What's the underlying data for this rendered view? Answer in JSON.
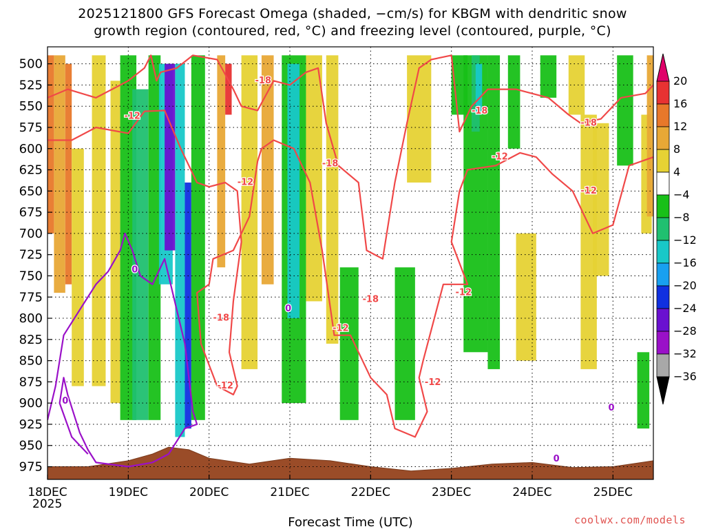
{
  "header": {
    "title_line1": "2025121800 GFS Forecast Omega (shaded, −cm/s) for KBGM with dendritic snow",
    "title_line2": "growth region (contoured, red, °C) and freezing level (contoured, purple, °C)"
  },
  "footer": {
    "credit": "coolwx.com/models"
  },
  "chart_data": {
    "type": "heatmap",
    "title": "2025121800 GFS Forecast Omega (shaded, −cm/s) for KBGM with dendritic snow growth region (contoured, red, °C) and freezing level (contoured, purple, °C)",
    "xlabel": "Forecast Time (UTC)",
    "ylabel": "",
    "x_range_days": [
      0,
      7.5
    ],
    "x_ticks": [
      {
        "day": 0,
        "label": "18DEC",
        "sublabel": "2025"
      },
      {
        "day": 1,
        "label": "19DEC"
      },
      {
        "day": 2,
        "label": "20DEC"
      },
      {
        "day": 3,
        "label": "21DEC"
      },
      {
        "day": 4,
        "label": "22DEC"
      },
      {
        "day": 5,
        "label": "23DEC"
      },
      {
        "day": 6,
        "label": "24DEC"
      },
      {
        "day": 7,
        "label": "25DEC"
      }
    ],
    "y_range_hpa": [
      480,
      990
    ],
    "y_ticks": [
      500,
      525,
      550,
      575,
      600,
      625,
      650,
      675,
      700,
      725,
      750,
      775,
      800,
      825,
      850,
      875,
      900,
      925,
      950,
      975
    ],
    "grid": "dotted",
    "colorbar": {
      "labels": [
        "20",
        "16",
        "12",
        "8",
        "4",
        "−4",
        "−8",
        "−12",
        "−16",
        "−20",
        "−24",
        "−28",
        "−32",
        "−36"
      ],
      "colors": [
        "#e0006a",
        "#e83232",
        "#e8782a",
        "#e8a836",
        "#e6d234",
        "#ffffff",
        "#18c018",
        "#20c070",
        "#18c8c8",
        "#18a0f0",
        "#1030e0",
        "#6a10d0",
        "#9a10c8",
        "#a8a8a8",
        "#000000"
      ]
    },
    "omega_shading": [
      {
        "d0": 0.0,
        "d1": 0.08,
        "p0": 490,
        "p1": 700,
        "v": 12
      },
      {
        "d0": 0.08,
        "d1": 0.22,
        "p0": 490,
        "p1": 770,
        "v": 8
      },
      {
        "d0": 0.22,
        "d1": 0.3,
        "p0": 500,
        "p1": 760,
        "v": 12
      },
      {
        "d0": 0.3,
        "d1": 0.45,
        "p0": 600,
        "p1": 880,
        "v": 4
      },
      {
        "d0": 0.55,
        "d1": 0.72,
        "p0": 490,
        "p1": 880,
        "v": 4
      },
      {
        "d0": 0.78,
        "d1": 0.9,
        "p0": 520,
        "p1": 900,
        "v": 4
      },
      {
        "d0": 0.9,
        "d1": 1.1,
        "p0": 490,
        "p1": 920,
        "v": -8
      },
      {
        "d0": 1.05,
        "d1": 1.25,
        "p0": 530,
        "p1": 920,
        "v": -12
      },
      {
        "d0": 1.25,
        "d1": 1.4,
        "p0": 490,
        "p1": 920,
        "v": -8
      },
      {
        "d0": 1.38,
        "d1": 1.55,
        "p0": 500,
        "p1": 760,
        "v": -16
      },
      {
        "d0": 1.45,
        "d1": 1.58,
        "p0": 500,
        "p1": 720,
        "v": -28
      },
      {
        "d0": 1.58,
        "d1": 1.7,
        "p0": 500,
        "p1": 940,
        "v": -16
      },
      {
        "d0": 1.7,
        "d1": 1.78,
        "p0": 640,
        "p1": 930,
        "v": -24
      },
      {
        "d0": 1.78,
        "d1": 1.95,
        "p0": 490,
        "p1": 920,
        "v": -8
      },
      {
        "d0": 2.1,
        "d1": 2.2,
        "p0": 490,
        "p1": 740,
        "v": 8
      },
      {
        "d0": 2.2,
        "d1": 2.28,
        "p0": 500,
        "p1": 560,
        "v": 16
      },
      {
        "d0": 2.4,
        "d1": 2.6,
        "p0": 490,
        "p1": 860,
        "v": 4
      },
      {
        "d0": 2.65,
        "d1": 2.8,
        "p0": 490,
        "p1": 760,
        "v": 8
      },
      {
        "d0": 2.9,
        "d1": 3.2,
        "p0": 490,
        "p1": 900,
        "v": -8
      },
      {
        "d0": 2.97,
        "d1": 3.12,
        "p0": 500,
        "p1": 800,
        "v": -16
      },
      {
        "d0": 3.2,
        "d1": 3.4,
        "p0": 490,
        "p1": 780,
        "v": 4
      },
      {
        "d0": 3.45,
        "d1": 3.6,
        "p0": 490,
        "p1": 830,
        "v": 4
      },
      {
        "d0": 3.62,
        "d1": 3.85,
        "p0": 740,
        "p1": 920,
        "v": -8
      },
      {
        "d0": 4.3,
        "d1": 4.55,
        "p0": 740,
        "p1": 920,
        "v": -8
      },
      {
        "d0": 4.45,
        "d1": 4.75,
        "p0": 490,
        "p1": 640,
        "v": 4
      },
      {
        "d0": 5.0,
        "d1": 5.2,
        "p0": 490,
        "p1": 560,
        "v": -8
      },
      {
        "d0": 5.15,
        "d1": 5.45,
        "p0": 490,
        "p1": 840,
        "v": -8
      },
      {
        "d0": 5.25,
        "d1": 5.35,
        "p0": 490,
        "p1": 580,
        "v": -12
      },
      {
        "d0": 5.3,
        "d1": 5.38,
        "p0": 500,
        "p1": 560,
        "v": -16
      },
      {
        "d0": 5.45,
        "d1": 5.6,
        "p0": 490,
        "p1": 860,
        "v": -8
      },
      {
        "d0": 5.7,
        "d1": 5.85,
        "p0": 490,
        "p1": 600,
        "v": -8
      },
      {
        "d0": 5.8,
        "d1": 6.05,
        "p0": 700,
        "p1": 850,
        "v": 4
      },
      {
        "d0": 6.1,
        "d1": 6.3,
        "p0": 490,
        "p1": 540,
        "v": -8
      },
      {
        "d0": 6.45,
        "d1": 6.65,
        "p0": 490,
        "p1": 560,
        "v": 4
      },
      {
        "d0": 6.6,
        "d1": 6.8,
        "p0": 560,
        "p1": 860,
        "v": 4
      },
      {
        "d0": 6.75,
        "d1": 6.95,
        "p0": 570,
        "p1": 750,
        "v": 4
      },
      {
        "d0": 7.05,
        "d1": 7.25,
        "p0": 490,
        "p1": 620,
        "v": -8
      },
      {
        "d0": 7.35,
        "d1": 7.48,
        "p0": 560,
        "p1": 700,
        "v": 4
      },
      {
        "d0": 7.42,
        "d1": 7.5,
        "p0": 490,
        "p1": 680,
        "v": 8
      },
      {
        "d0": 7.3,
        "d1": 7.45,
        "p0": 840,
        "p1": 930,
        "v": -8
      }
    ],
    "series": [
      {
        "name": "-12 °C isotherm",
        "color": "#f04848",
        "points": [
          [
            0.0,
            590
          ],
          [
            0.3,
            590
          ],
          [
            0.6,
            575
          ],
          [
            1.0,
            582
          ],
          [
            1.2,
            556
          ],
          [
            1.45,
            555
          ],
          [
            1.65,
            600
          ],
          [
            1.85,
            640
          ],
          [
            2.0,
            645
          ],
          [
            2.2,
            640
          ],
          [
            2.35,
            650
          ],
          [
            2.4,
            710
          ],
          [
            2.3,
            780
          ],
          [
            2.25,
            840
          ],
          [
            2.35,
            880
          ],
          [
            2.3,
            890
          ],
          [
            2.1,
            880
          ],
          [
            1.9,
            830
          ],
          [
            1.85,
            770
          ],
          [
            2.0,
            760
          ],
          [
            2.05,
            730
          ],
          [
            2.3,
            720
          ],
          [
            2.5,
            680
          ],
          [
            2.6,
            615
          ],
          [
            2.65,
            600
          ],
          [
            2.8,
            590
          ],
          [
            3.05,
            600
          ],
          [
            3.25,
            640
          ],
          [
            3.4,
            720
          ],
          [
            3.55,
            820
          ],
          [
            3.75,
            820
          ],
          [
            4.0,
            870
          ],
          [
            4.2,
            890
          ],
          [
            4.3,
            930
          ],
          [
            4.55,
            940
          ],
          [
            4.7,
            910
          ],
          [
            4.6,
            870
          ],
          [
            4.65,
            850
          ],
          [
            4.9,
            760
          ],
          [
            5.2,
            760
          ],
          [
            5.0,
            710
          ],
          [
            5.1,
            650
          ],
          [
            5.2,
            625
          ],
          [
            5.55,
            620
          ],
          [
            5.85,
            605
          ],
          [
            6.05,
            610
          ],
          [
            6.25,
            630
          ],
          [
            6.5,
            650
          ],
          [
            6.75,
            700
          ],
          [
            7.0,
            690
          ],
          [
            7.2,
            620
          ],
          [
            7.5,
            610
          ]
        ]
      },
      {
        "name": "-18 °C isotherm",
        "color": "#f04848",
        "points": [
          [
            0.0,
            540
          ],
          [
            0.25,
            530
          ],
          [
            0.6,
            540
          ],
          [
            1.0,
            520
          ],
          [
            1.2,
            505
          ],
          [
            1.28,
            490
          ],
          [
            1.35,
            520
          ],
          [
            1.4,
            510
          ],
          [
            1.6,
            505
          ],
          [
            1.8,
            490
          ],
          [
            2.1,
            495
          ],
          [
            2.3,
            530
          ],
          [
            2.4,
            550
          ],
          [
            2.6,
            555
          ],
          [
            2.8,
            520
          ],
          [
            3.0,
            525
          ],
          [
            3.2,
            510
          ],
          [
            3.35,
            505
          ],
          [
            3.45,
            570
          ],
          [
            3.6,
            620
          ],
          [
            3.85,
            640
          ],
          [
            3.95,
            720
          ],
          [
            4.15,
            730
          ],
          [
            4.3,
            640
          ],
          [
            4.45,
            570
          ],
          [
            4.6,
            505
          ],
          [
            4.75,
            495
          ],
          [
            5.0,
            490
          ],
          [
            5.1,
            580
          ],
          [
            5.25,
            550
          ],
          [
            5.45,
            530
          ],
          [
            5.8,
            530
          ],
          [
            6.2,
            540
          ],
          [
            6.45,
            560
          ],
          [
            6.6,
            570
          ],
          [
            6.85,
            565
          ],
          [
            7.1,
            540
          ],
          [
            7.4,
            535
          ],
          [
            7.5,
            525
          ]
        ]
      },
      {
        "name": "0 °C freezing level",
        "color": "#9a10c8",
        "points": [
          [
            0.0,
            920
          ],
          [
            0.1,
            880
          ],
          [
            0.2,
            820
          ],
          [
            0.4,
            790
          ],
          [
            0.6,
            760
          ],
          [
            0.75,
            745
          ],
          [
            0.9,
            720
          ],
          [
            0.96,
            700
          ],
          [
            1.05,
            720
          ],
          [
            1.15,
            750
          ],
          [
            1.3,
            760
          ],
          [
            1.45,
            730
          ],
          [
            1.6,
            790
          ],
          [
            1.7,
            830
          ],
          [
            1.8,
            910
          ],
          [
            1.85,
            925
          ],
          [
            1.7,
            930
          ],
          [
            1.5,
            960
          ],
          [
            1.3,
            970
          ],
          [
            1.0,
            975
          ],
          [
            0.6,
            970
          ],
          [
            0.5,
            955
          ],
          [
            0.4,
            935
          ],
          [
            0.25,
            890
          ],
          [
            0.2,
            870
          ],
          [
            0.15,
            900
          ],
          [
            0.3,
            940
          ],
          [
            0.5,
            960
          ]
        ]
      }
    ],
    "contour_labels": [
      {
        "text": "-12",
        "day": 1.05,
        "hpa": 562,
        "color": "#f04848"
      },
      {
        "text": "-18",
        "day": 2.67,
        "hpa": 520,
        "color": "#f04848"
      },
      {
        "text": "-12",
        "day": 2.45,
        "hpa": 640,
        "color": "#f04848"
      },
      {
        "text": "-18",
        "day": 3.5,
        "hpa": 618,
        "color": "#f04848"
      },
      {
        "text": "-18",
        "day": 2.15,
        "hpa": 800,
        "color": "#f04848"
      },
      {
        "text": "-12",
        "day": 2.2,
        "hpa": 880,
        "color": "#f04848"
      },
      {
        "text": "-18",
        "day": 4.0,
        "hpa": 778,
        "color": "#f04848"
      },
      {
        "text": "-12",
        "day": 3.63,
        "hpa": 812,
        "color": "#f04848"
      },
      {
        "text": "-12",
        "day": 4.77,
        "hpa": 876,
        "color": "#f04848"
      },
      {
        "text": "-12",
        "day": 5.15,
        "hpa": 770,
        "color": "#f04848"
      },
      {
        "text": "-18",
        "day": 5.35,
        "hpa": 556,
        "color": "#f04848"
      },
      {
        "text": "-12",
        "day": 5.6,
        "hpa": 610,
        "color": "#f04848"
      },
      {
        "text": "-18",
        "day": 6.7,
        "hpa": 570,
        "color": "#f04848"
      },
      {
        "text": "-12",
        "day": 6.7,
        "hpa": 650,
        "color": "#f04848"
      },
      {
        "text": "0",
        "day": 0.22,
        "hpa": 898,
        "color": "#9a10c8"
      },
      {
        "text": "0",
        "day": 1.08,
        "hpa": 743,
        "color": "#9a10c8"
      },
      {
        "text": "0",
        "day": 2.98,
        "hpa": 789,
        "color": "#9a10c8"
      },
      {
        "text": "0",
        "day": 6.3,
        "hpa": 966,
        "color": "#9a10c8"
      },
      {
        "text": "0",
        "day": 6.98,
        "hpa": 906,
        "color": "#9a10c8"
      }
    ],
    "terrain_surface_hpa": [
      [
        0.0,
        975
      ],
      [
        0.5,
        975
      ],
      [
        1.0,
        968
      ],
      [
        1.3,
        960
      ],
      [
        1.5,
        952
      ],
      [
        1.75,
        955
      ],
      [
        2.0,
        965
      ],
      [
        2.5,
        972
      ],
      [
        3.0,
        965
      ],
      [
        3.5,
        968
      ],
      [
        4.0,
        975
      ],
      [
        4.5,
        980
      ],
      [
        5.0,
        977
      ],
      [
        5.5,
        972
      ],
      [
        6.0,
        970
      ],
      [
        6.5,
        976
      ],
      [
        7.0,
        975
      ],
      [
        7.5,
        968
      ]
    ]
  }
}
